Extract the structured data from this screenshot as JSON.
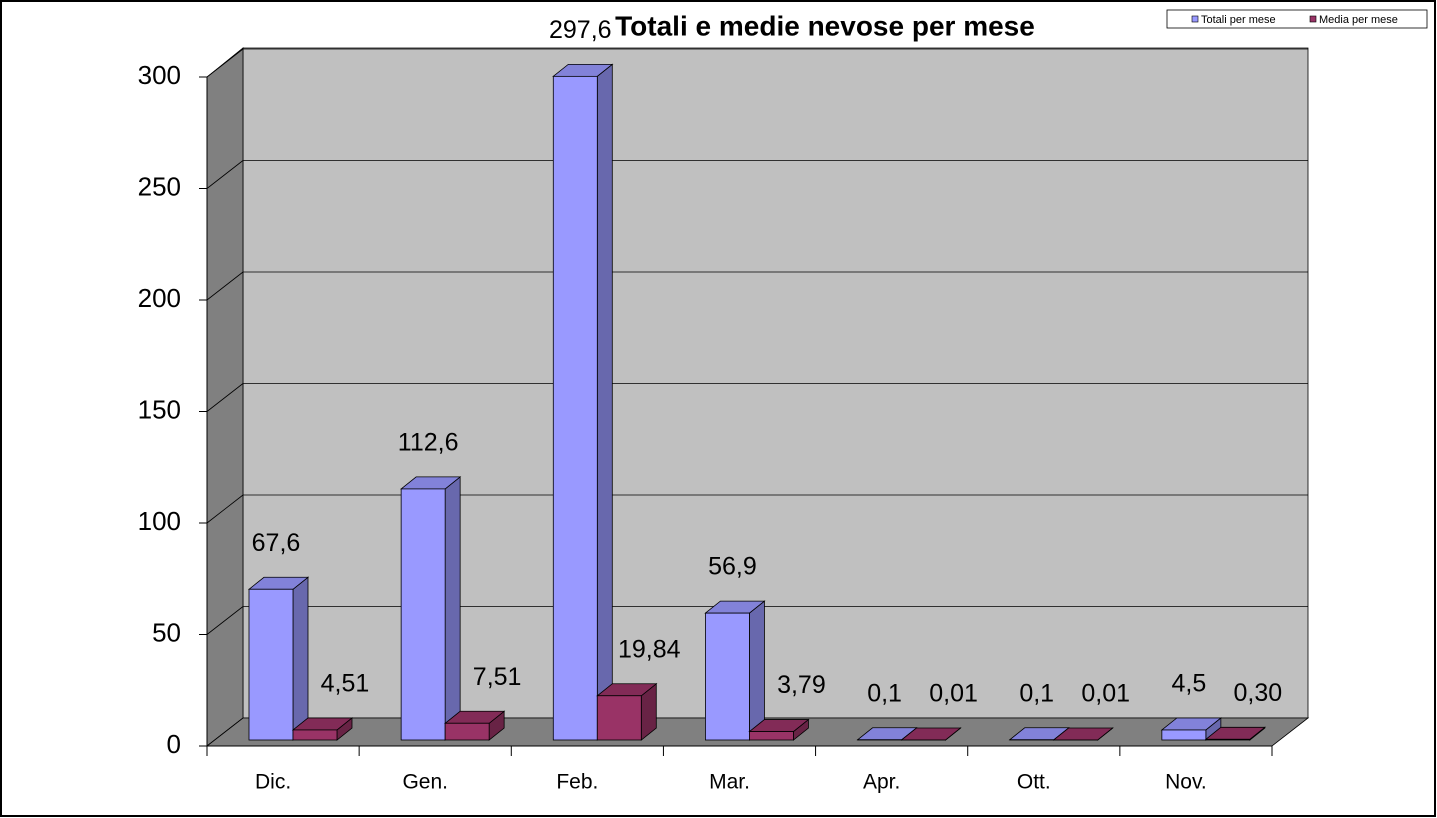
{
  "chart_data": {
    "type": "bar3d",
    "title": "Totali e medie nevose per mese",
    "categories": [
      "Dic.",
      "Gen.",
      "Feb.",
      "Mar.",
      "Apr.",
      "Ott.",
      "Nov."
    ],
    "series": [
      {
        "name": "Totali per mese",
        "color": "#9999ff",
        "values": [
          67.6,
          112.6,
          297.6,
          56.9,
          0.1,
          0.1,
          4.5
        ],
        "value_labels": [
          "67,6",
          "112,6",
          "297,6",
          "56,9",
          "0,1",
          "0,1",
          "4,5"
        ]
      },
      {
        "name": "Media per mese",
        "color": "#993366",
        "values": [
          4.51,
          7.51,
          19.84,
          3.79,
          0.01,
          0.01,
          0.3
        ],
        "value_labels": [
          "4,51",
          "7,51",
          "19,84",
          "3,79",
          "0,01",
          "0,01",
          "0,30"
        ]
      }
    ],
    "ylim": [
      0,
      300
    ],
    "yticks": [
      0,
      50,
      100,
      150,
      200,
      250,
      300
    ],
    "grid": true,
    "legend": "top-right"
  }
}
